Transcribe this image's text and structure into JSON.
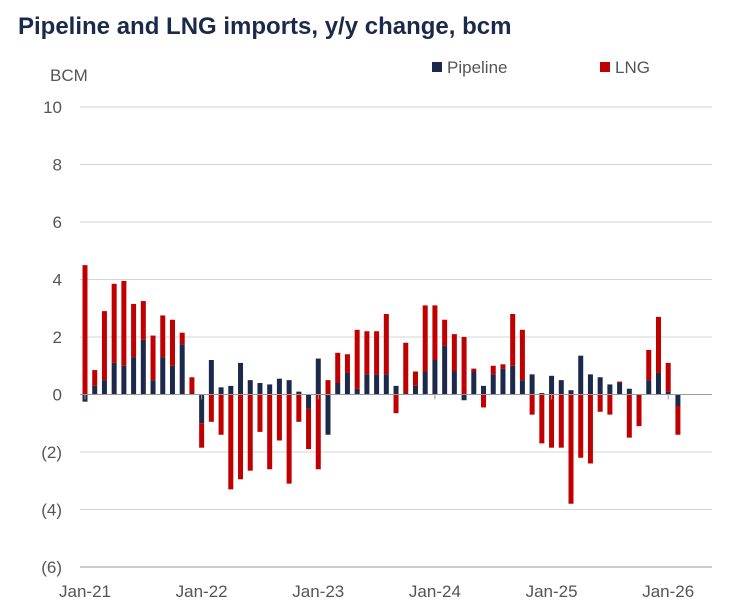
{
  "chart_data": {
    "type": "bar",
    "stacked": true,
    "title": "Pipeline and LNG imports, y/y change, bcm",
    "ylabel": "BCM",
    "xlabel": "",
    "ylim": [
      -6,
      10
    ],
    "y_ticks": [
      {
        "value": 10,
        "label": "10"
      },
      {
        "value": 8,
        "label": "8"
      },
      {
        "value": 6,
        "label": "6"
      },
      {
        "value": 4,
        "label": "4"
      },
      {
        "value": 2,
        "label": "2"
      },
      {
        "value": 0,
        "label": "0"
      },
      {
        "value": -2,
        "label": "(2)"
      },
      {
        "value": -4,
        "label": "(4)"
      },
      {
        "value": -6,
        "label": "(6)"
      }
    ],
    "x_ticks": [
      {
        "index": 0,
        "label": "Jan-21"
      },
      {
        "index": 12,
        "label": "Jan-22"
      },
      {
        "index": 24,
        "label": "Jan-23"
      },
      {
        "index": 36,
        "label": "Jan-24"
      },
      {
        "index": 48,
        "label": "Jan-25"
      },
      {
        "index": 60,
        "label": "Jan-26"
      }
    ],
    "categories": [
      "Jan-21",
      "Feb-21",
      "Mar-21",
      "Apr-21",
      "May-21",
      "Jun-21",
      "Jul-21",
      "Aug-21",
      "Sep-21",
      "Oct-21",
      "Nov-21",
      "Dec-21",
      "Jan-22",
      "Feb-22",
      "Mar-22",
      "Apr-22",
      "May-22",
      "Jun-22",
      "Jul-22",
      "Aug-22",
      "Sep-22",
      "Oct-22",
      "Nov-22",
      "Dec-22",
      "Jan-23",
      "Feb-23",
      "Mar-23",
      "Apr-23",
      "May-23",
      "Jun-23",
      "Jul-23",
      "Aug-23",
      "Sep-23",
      "Oct-23",
      "Nov-23",
      "Dec-23",
      "Jan-24",
      "Feb-24",
      "Mar-24",
      "Apr-24",
      "May-24",
      "Jun-24",
      "Jul-24",
      "Aug-24",
      "Sep-24",
      "Oct-24",
      "Nov-24",
      "Dec-24",
      "Jan-25",
      "Feb-25",
      "Mar-25",
      "Apr-25",
      "May-25",
      "Jun-25",
      "Jul-25",
      "Aug-25",
      "Sep-25",
      "Oct-25",
      "Nov-25",
      "Dec-25",
      "Jan-26",
      "Feb-26"
    ],
    "series": [
      {
        "name": "Pipeline",
        "color": "#1b2a4a",
        "values": [
          -0.25,
          0.3,
          0.5,
          1.1,
          1.0,
          1.3,
          1.9,
          0.5,
          1.3,
          1.0,
          1.75,
          0.05,
          -1.0,
          1.2,
          0.25,
          0.3,
          1.1,
          0.5,
          0.4,
          0.35,
          0.55,
          0.5,
          0.1,
          -0.5,
          1.25,
          -1.4,
          0.4,
          0.75,
          0.2,
          0.7,
          0.7,
          0.7,
          0.3,
          0.05,
          0.3,
          0.8,
          1.2,
          1.7,
          0.8,
          -0.2,
          0.8,
          0.3,
          0.7,
          0.9,
          1.0,
          0.5,
          0.7,
          0.05,
          0.65,
          0.5,
          0.15,
          1.35,
          0.7,
          0.6,
          0.35,
          0.4,
          0.2,
          -0.05,
          0.5,
          0.75,
          0.1,
          -0.4
        ]
      },
      {
        "name": "LNG",
        "color": "#c00000",
        "values": [
          4.5,
          0.55,
          2.4,
          2.75,
          2.95,
          1.85,
          1.35,
          1.55,
          1.45,
          1.6,
          0.4,
          0.55,
          -0.85,
          -0.95,
          -1.4,
          -3.3,
          -2.95,
          -2.65,
          -1.3,
          -2.6,
          -1.6,
          -3.1,
          -0.95,
          -1.4,
          -2.6,
          0.5,
          1.05,
          0.65,
          2.05,
          1.5,
          1.5,
          2.1,
          -0.65,
          1.75,
          0.5,
          2.3,
          1.9,
          0.9,
          1.3,
          2.0,
          0.1,
          -0.45,
          0.3,
          0.15,
          1.8,
          1.75,
          -0.7,
          -1.7,
          -1.85,
          -1.85,
          -3.8,
          -2.2,
          -2.4,
          -0.6,
          -0.7,
          0.05,
          -1.5,
          -1.05,
          1.05,
          1.95,
          1.0,
          -1.0
        ]
      }
    ],
    "legend_position": "top-right",
    "grid": true
  }
}
